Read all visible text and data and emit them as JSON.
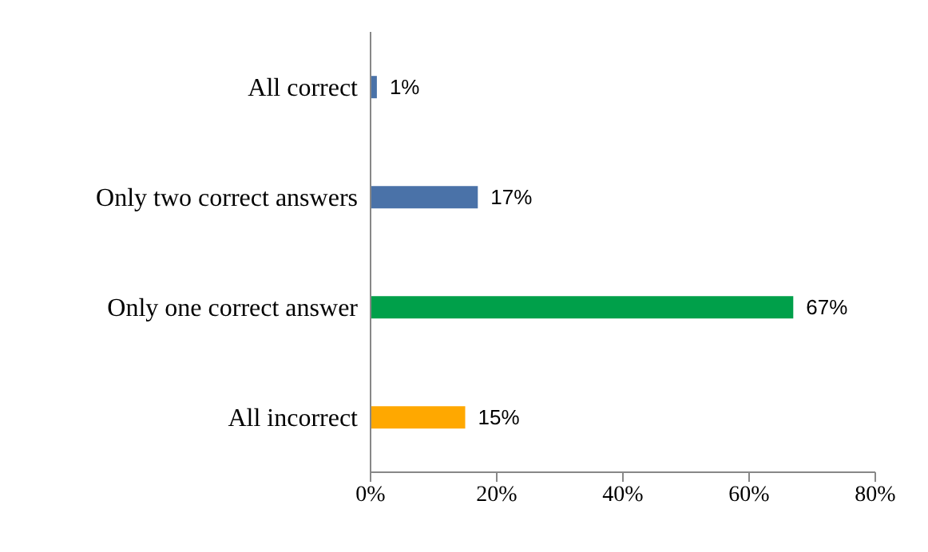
{
  "chart_data": {
    "type": "bar",
    "orientation": "horizontal",
    "categories": [
      "All correct",
      "Only two correct answers",
      "Only one correct answer",
      "All incorrect"
    ],
    "values": [
      1,
      17,
      67,
      15
    ],
    "colors": [
      "#4a72a8",
      "#4a72a8",
      "#00a04a",
      "#ffa800"
    ],
    "value_labels": [
      "1%",
      "17%",
      "67%",
      "15%"
    ],
    "xlim": [
      0,
      80
    ],
    "xticks": [
      {
        "value": 0,
        "label": "0%"
      },
      {
        "value": 20,
        "label": "20%"
      },
      {
        "value": 40,
        "label": "40%"
      },
      {
        "value": 60,
        "label": "60%"
      },
      {
        "value": 80,
        "label": "80%"
      }
    ],
    "grid": false,
    "legend": false
  }
}
